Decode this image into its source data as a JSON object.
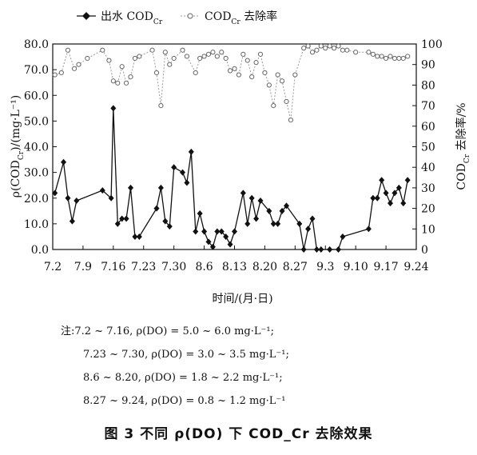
{
  "chart_data": {
    "type": "line",
    "x_tick_labels": [
      "7.2",
      "7.9",
      "7.16",
      "7.23",
      "7.30",
      "8.6",
      "8.13",
      "8.20",
      "8.27",
      "9.3",
      "9.10",
      "9.17",
      "9.24"
    ],
    "x_axis_label": "时间/(月·日)",
    "y_left_label": "ρ(COD_Cr)/(mg·L⁻¹)",
    "y_left_ticks": [
      "0.0",
      "10.0",
      "20.0",
      "30.0",
      "40.0",
      "50.0",
      "60.0",
      "70.0",
      "80.0"
    ],
    "y_left_range": [
      0,
      80
    ],
    "y_right_label": "COD_Cr 去除率/%",
    "y_right_ticks": [
      "0",
      "10",
      "20",
      "30",
      "40",
      "50",
      "60",
      "70",
      "80",
      "90",
      "100"
    ],
    "y_right_range": [
      0,
      100
    ],
    "x_day_range": [
      0,
      84
    ],
    "legend": {
      "placement": "top",
      "items": [
        {
          "label": "出水 COD",
          "sub": "Cr",
          "marker": "filled-diamond"
        },
        {
          "label": "COD",
          "sub": "Cr",
          "suffix": " 去除率",
          "marker": "open-circle"
        }
      ]
    },
    "series": [
      {
        "name": "出水 COD_Cr",
        "axis": "left",
        "color": "#111111",
        "points": [
          [
            0.5,
            22
          ],
          [
            2.5,
            34
          ],
          [
            3.5,
            20
          ],
          [
            4.5,
            11
          ],
          [
            5.5,
            19
          ],
          [
            11.5,
            23
          ],
          [
            13.5,
            20
          ],
          [
            14,
            55
          ],
          [
            15,
            10
          ],
          [
            16,
            12
          ],
          [
            17,
            12
          ],
          [
            18,
            24
          ],
          [
            19,
            5
          ],
          [
            20,
            5
          ],
          [
            24,
            16
          ],
          [
            25,
            24
          ],
          [
            26,
            11
          ],
          [
            27,
            9
          ],
          [
            28,
            32
          ],
          [
            30,
            30
          ],
          [
            31,
            26
          ],
          [
            32,
            38
          ],
          [
            33,
            7
          ],
          [
            34,
            14
          ],
          [
            35,
            7
          ],
          [
            36,
            3
          ],
          [
            37,
            1
          ],
          [
            38,
            7
          ],
          [
            39,
            7
          ],
          [
            40,
            5
          ],
          [
            41,
            2
          ],
          [
            42,
            7
          ],
          [
            44,
            22
          ],
          [
            45,
            10
          ],
          [
            46,
            20
          ],
          [
            47,
            12
          ],
          [
            48,
            19
          ],
          [
            50,
            15
          ],
          [
            51,
            10
          ],
          [
            52,
            10
          ],
          [
            53,
            15
          ],
          [
            54,
            17
          ],
          [
            57,
            10
          ],
          [
            58,
            0
          ],
          [
            59,
            8
          ],
          [
            60,
            12
          ],
          [
            61,
            0
          ],
          [
            62,
            0
          ],
          [
            64,
            0
          ],
          [
            66,
            0
          ],
          [
            67,
            5
          ],
          [
            73,
            8
          ],
          [
            74,
            20
          ],
          [
            75,
            20
          ],
          [
            76,
            27
          ],
          [
            77,
            22
          ],
          [
            78,
            18
          ],
          [
            79,
            22
          ],
          [
            80,
            24
          ],
          [
            81,
            18
          ],
          [
            82,
            27
          ]
        ]
      },
      {
        "name": "COD_Cr 去除率",
        "axis": "right",
        "color": "#999999",
        "points": [
          [
            0.5,
            85
          ],
          [
            2,
            86
          ],
          [
            3.5,
            97
          ],
          [
            5,
            88
          ],
          [
            6,
            90
          ],
          [
            8,
            93
          ],
          [
            11.5,
            97
          ],
          [
            13,
            92
          ],
          [
            14,
            82
          ],
          [
            15,
            81
          ],
          [
            16,
            89
          ],
          [
            17,
            81
          ],
          [
            18,
            84
          ],
          [
            19,
            93
          ],
          [
            20,
            94
          ],
          [
            23,
            97
          ],
          [
            24,
            86
          ],
          [
            25,
            70
          ],
          [
            26,
            96
          ],
          [
            27,
            90
          ],
          [
            28,
            93
          ],
          [
            30,
            97
          ],
          [
            31,
            94
          ],
          [
            33,
            86
          ],
          [
            34,
            93
          ],
          [
            35,
            94
          ],
          [
            36,
            95
          ],
          [
            37,
            96
          ],
          [
            38,
            94
          ],
          [
            39,
            96
          ],
          [
            40,
            93
          ],
          [
            41,
            87
          ],
          [
            42,
            88
          ],
          [
            43,
            85
          ],
          [
            44,
            95
          ],
          [
            45,
            92
          ],
          [
            46,
            84
          ],
          [
            47,
            91
          ],
          [
            48,
            95
          ],
          [
            49,
            86
          ],
          [
            50,
            80
          ],
          [
            51,
            70
          ],
          [
            52,
            85
          ],
          [
            53,
            82
          ],
          [
            54,
            72
          ],
          [
            55,
            63
          ],
          [
            56,
            85
          ],
          [
            58,
            98
          ],
          [
            59,
            99
          ],
          [
            60,
            96
          ],
          [
            61,
            97
          ],
          [
            62,
            99
          ],
          [
            63,
            98
          ],
          [
            64,
            99
          ],
          [
            65,
            98
          ],
          [
            66,
            99
          ],
          [
            67,
            97
          ],
          [
            68,
            97
          ],
          [
            70,
            96
          ],
          [
            73,
            96
          ],
          [
            74,
            95
          ],
          [
            75,
            94
          ],
          [
            76,
            94
          ],
          [
            77,
            93
          ],
          [
            78,
            94
          ],
          [
            79,
            93
          ],
          [
            80,
            93
          ],
          [
            81,
            93
          ],
          [
            82,
            94
          ]
        ]
      }
    ]
  },
  "notes": {
    "prefix": "注:",
    "rows": [
      {
        "period": "7.2 ~ 7.16",
        "do": "ρ(DO) = 5.0 ~ 6.0 mg·L⁻¹;"
      },
      {
        "period": "7.23 ~ 7.30",
        "do": "ρ(DO) = 3.0 ~ 3.5 mg·L⁻¹;"
      },
      {
        "period": "8.6 ~ 8.20",
        "do": "ρ(DO) = 1.8 ~ 2.2 mg·L⁻¹;"
      },
      {
        "period": "8.27 ~ 9.24",
        "do": "ρ(DO) = 0.8 ~ 1.2 mg·L⁻¹"
      }
    ]
  },
  "caption": "图 3    不同 ρ(DO) 下 COD_Cr 去除效果"
}
